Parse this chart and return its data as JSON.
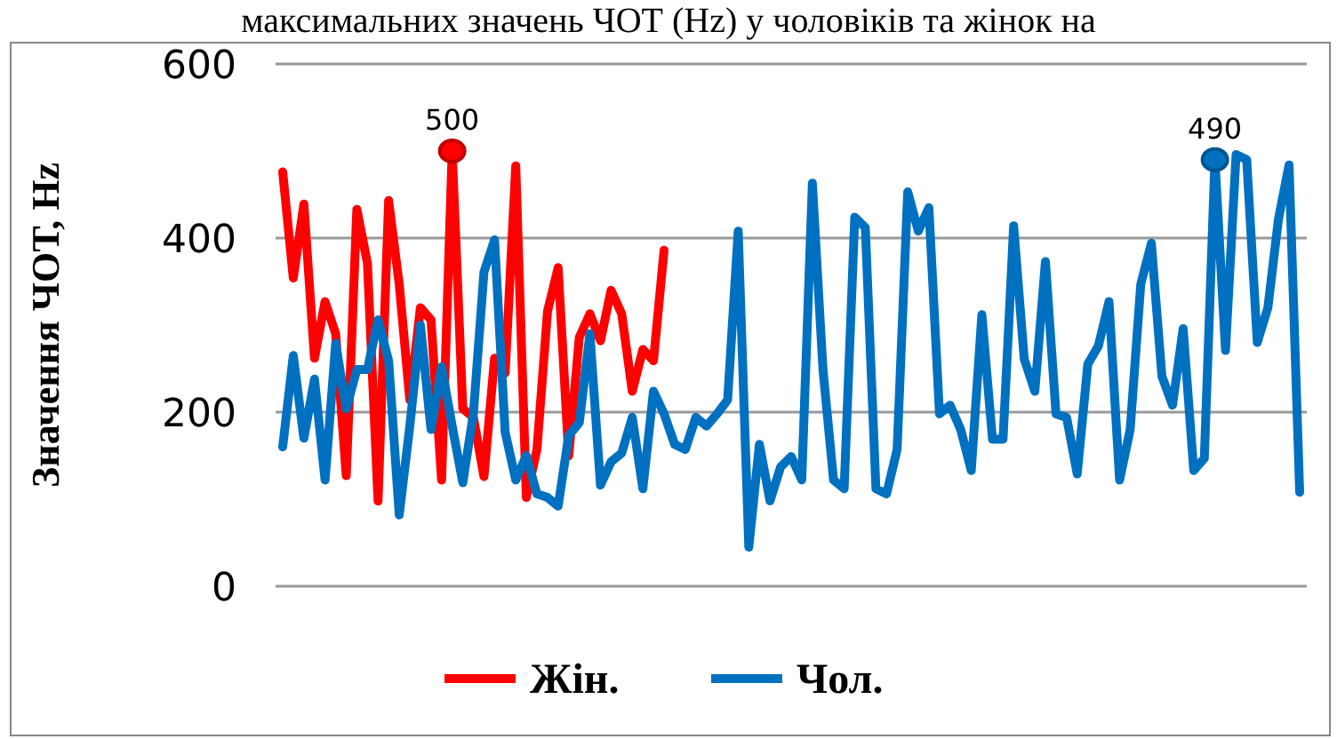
{
  "chart_data": {
    "type": "line",
    "title": "максимальних значень ЧОТ (Hz) у чоловіків та жінок на",
    "ylabel": "Значення ЧОТ, Hz",
    "categories": [
      null,
      null,
      null,
      null,
      null,
      null,
      null,
      null,
      null,
      null,
      null,
      null,
      null,
      null,
      null,
      null,
      null,
      null,
      null,
      null,
      null,
      null,
      null,
      null,
      null,
      null,
      null,
      null,
      null,
      null,
      null,
      null,
      null,
      null,
      null,
      null,
      null,
      null,
      null,
      null,
      null,
      null,
      null,
      null,
      null,
      null,
      null,
      null,
      null,
      null,
      null,
      null,
      null,
      null,
      null,
      null,
      null,
      null,
      null,
      null,
      null,
      null,
      null,
      null,
      null,
      null,
      null,
      null,
      null,
      null,
      null,
      null,
      null,
      null,
      null,
      null,
      null,
      null,
      null,
      null,
      null,
      null,
      null,
      null,
      null,
      null,
      null,
      null,
      null,
      null,
      null,
      null,
      null,
      null,
      null,
      null,
      null
    ],
    "series": [
      {
        "name": "Жін.",
        "color": "#ff0000",
        "values": [
          476,
          354,
          439,
          262,
          327,
          290,
          127,
          433,
          371,
          98,
          443,
          347,
          214,
          320,
          306,
          122,
          500,
          204,
          194,
          126,
          262,
          245,
          483,
          102,
          157,
          316,
          366,
          150,
          286,
          313,
          282,
          340,
          313,
          224,
          272,
          259,
          386,
          null,
          null,
          null,
          null,
          null,
          null,
          null,
          null,
          null,
          null,
          null,
          null,
          null,
          null,
          null,
          null,
          null,
          null,
          null,
          null,
          null,
          null,
          null,
          null,
          null,
          null,
          null,
          null,
          null,
          null,
          null,
          null,
          null,
          null,
          null,
          null,
          null,
          null,
          null,
          null,
          null,
          null,
          null,
          null,
          null,
          null,
          null,
          null,
          null,
          null,
          null,
          null,
          null,
          null,
          null,
          null,
          null,
          null,
          null,
          null
        ]
      },
      {
        "name": "Чол.",
        "color": "#0070c0",
        "values": [
          160,
          265,
          170,
          238,
          122,
          279,
          204,
          249,
          249,
          306,
          259,
          82,
          184,
          300,
          180,
          252,
          184,
          119,
          198,
          361,
          398,
          177,
          122,
          150,
          106,
          102,
          92,
          173,
          188,
          290,
          116,
          143,
          153,
          194,
          112,
          224,
          198,
          163,
          157,
          194,
          184,
          198,
          214,
          408,
          45,
          163,
          98,
          137,
          149,
          122,
          463,
          249,
          122,
          112,
          424,
          412,
          112,
          106,
          157,
          453,
          408,
          435,
          198,
          208,
          180,
          133,
          312,
          169,
          169,
          414,
          261,
          224,
          373,
          198,
          194,
          129,
          255,
          276,
          327,
          122,
          180,
          347,
          394,
          241,
          208,
          296,
          133,
          147,
          490,
          271,
          496,
          490,
          280,
          320,
          422,
          484,
          108
        ]
      }
    ],
    "ylim": [
      0,
      600
    ],
    "yticks": [
      0,
      200,
      400,
      600
    ],
    "grid": "y",
    "legend": "bottom",
    "tick_labels": "y",
    "annotations": [
      {
        "text": "500",
        "y": 500
      },
      {
        "text": "490",
        "y": 490
      }
    ]
  }
}
